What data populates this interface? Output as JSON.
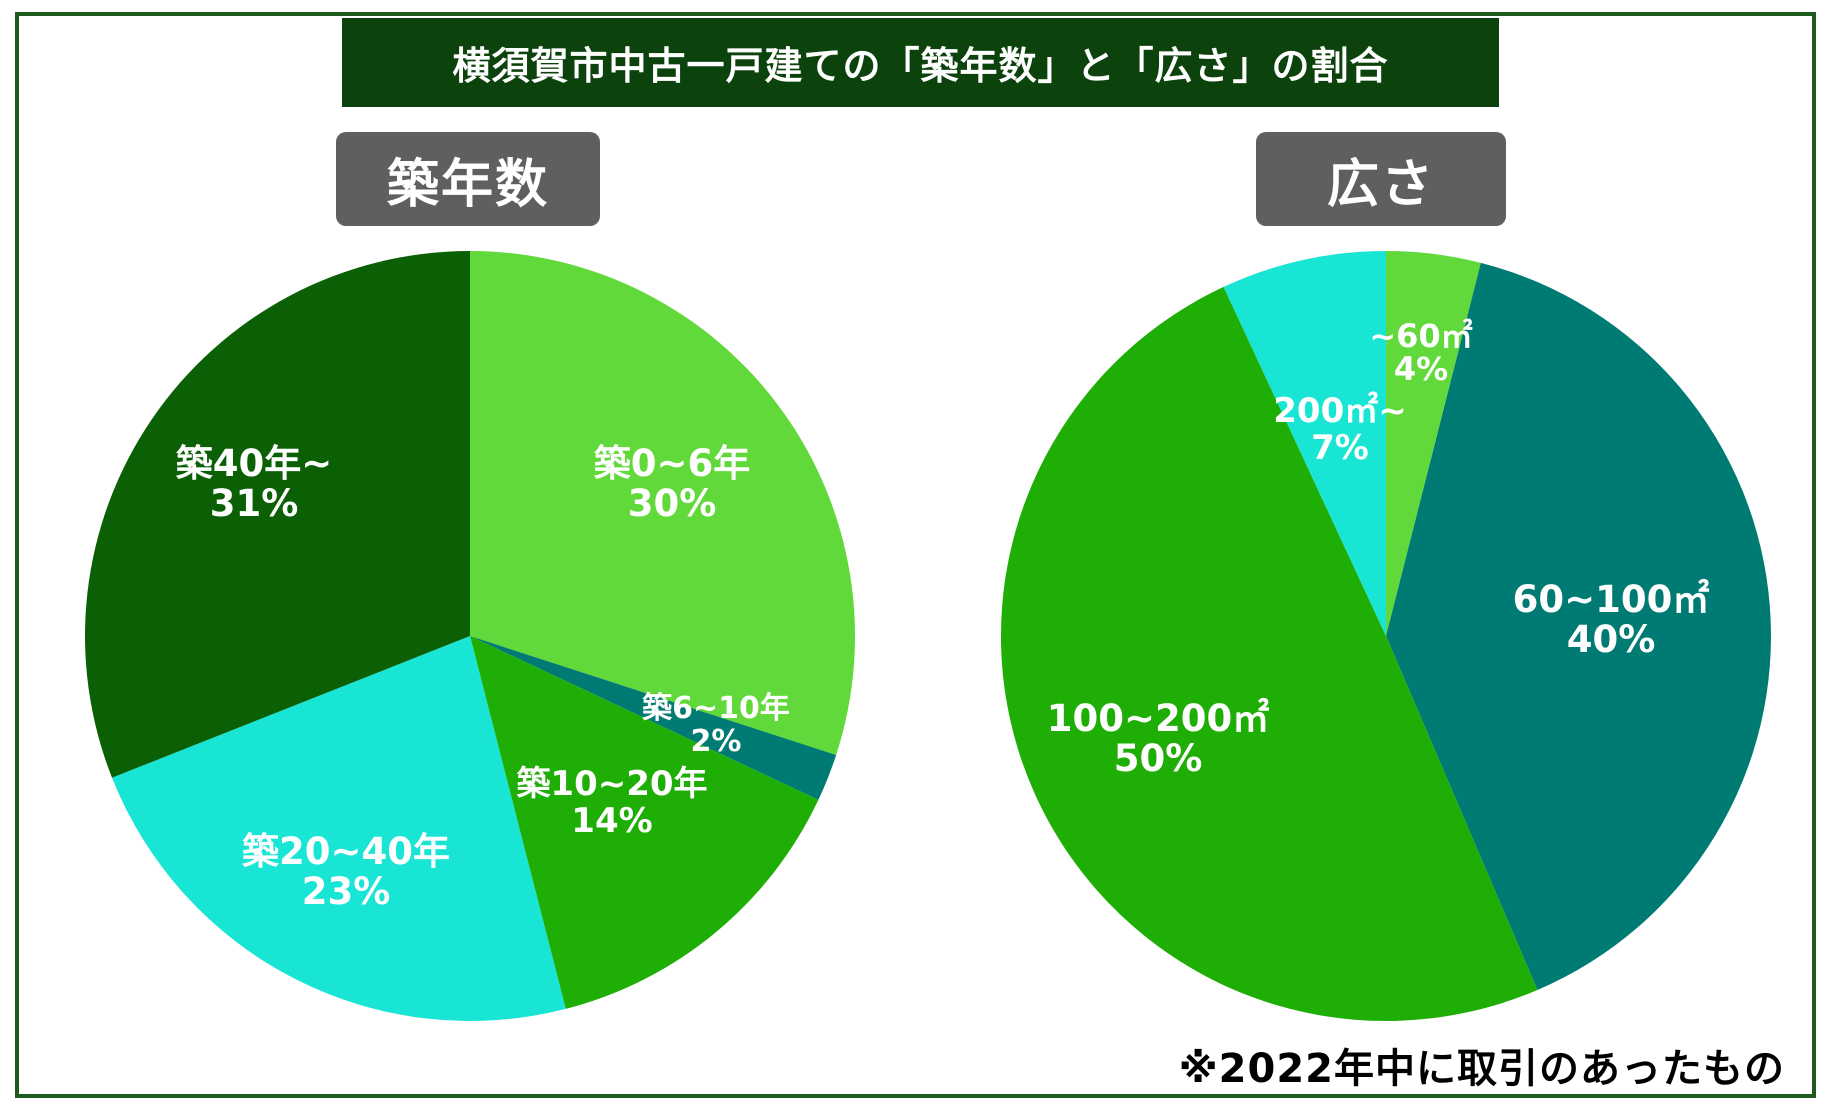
{
  "title": "横須賀市中古一戸建ての「築年数」と「広さ」の割合",
  "footnote": "※2022年中に取引のあったもの",
  "chart_data": [
    {
      "type": "pie",
      "title": "築年数",
      "slices": [
        {
          "label": "築0~6年",
          "value": 30,
          "pct_label": "30%",
          "color": "#62d93a"
        },
        {
          "label": "築6~10年",
          "value": 2,
          "pct_label": "2%",
          "color": "#007b73"
        },
        {
          "label": "築10~20年",
          "value": 14,
          "pct_label": "14%",
          "color": "#1fae05"
        },
        {
          "label": "築20~40年",
          "value": 23,
          "pct_label": "23%",
          "color": "#18e5d4"
        },
        {
          "label": "築40年~",
          "value": 31,
          "pct_label": "31%",
          "color": "#0b5f05"
        }
      ]
    },
    {
      "type": "pie",
      "title": "広さ",
      "slices": [
        {
          "label": "~60㎡",
          "value": 4,
          "pct_label": "4%",
          "color": "#62d93a"
        },
        {
          "label": "60~100㎡",
          "value": 40,
          "pct_label": "40%",
          "color": "#007b73"
        },
        {
          "label": "100~200㎡",
          "value": 50,
          "pct_label": "50%",
          "color": "#1fae05"
        },
        {
          "label": "200㎡~",
          "value": 7,
          "pct_label": "7%",
          "color": "#18e5d4"
        }
      ]
    }
  ]
}
